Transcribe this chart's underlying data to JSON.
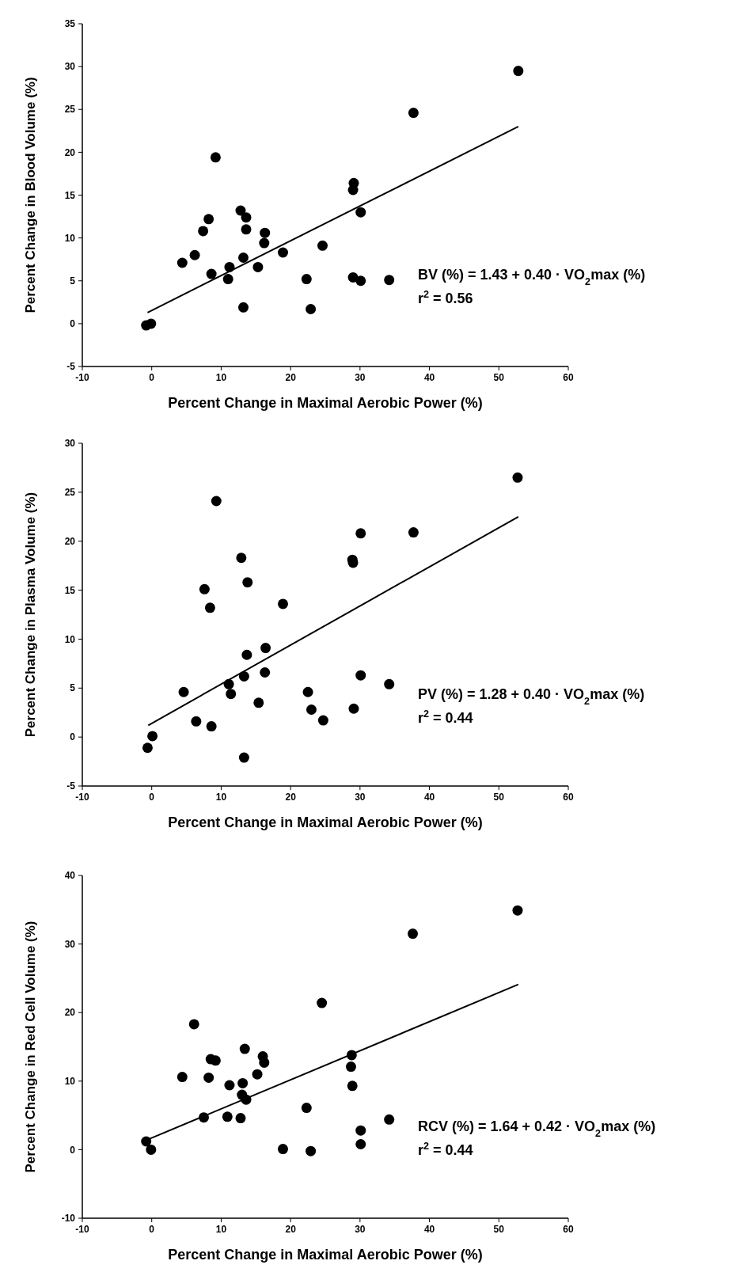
{
  "chart_data": [
    {
      "type": "scatter",
      "xlabel": "Percent Change in Maximal Aerobic Power (%)",
      "ylabel": "Percent Change in Blood Volume (%)",
      "xlim": [
        -10,
        60
      ],
      "xticks": [
        -10,
        0,
        10,
        20,
        30,
        40,
        50,
        60
      ],
      "ylim": [
        -5,
        35
      ],
      "yticks": [
        -5,
        0,
        5,
        10,
        15,
        20,
        25,
        30,
        35
      ],
      "annotations": [
        "BV (%) = 1.43 + 0.40 · VO$_{2}$max (%)",
        "r$^{2}$ = 0.56"
      ],
      "series": [
        {
          "marker": "circle",
          "color": "#000000",
          "x": [
            -0.8,
            -0.1,
            4.4,
            6.2,
            7.4,
            8.2,
            8.6,
            9.2,
            11.0,
            11.2,
            12.8,
            13.6,
            13.6,
            13.2,
            13.2,
            15.3,
            16.2,
            16.3,
            18.9,
            22.3,
            22.9,
            24.6,
            29.0,
            29.1,
            29.0,
            30.1,
            30.1,
            34.2,
            37.7,
            52.8
          ],
          "values": [
            -0.2,
            0,
            7.1,
            8.0,
            10.8,
            12.2,
            5.8,
            19.4,
            5.2,
            6.6,
            13.2,
            12.4,
            11.0,
            7.7,
            1.9,
            6.6,
            9.4,
            10.6,
            8.3,
            5.2,
            1.7,
            9.1,
            15.6,
            16.4,
            5.4,
            5.0,
            13.0,
            5.1,
            24.6,
            29.5
          ]
        },
        {
          "type": "line",
          "marker": "none",
          "color": "#000000",
          "x": [
            -0.6,
            52.8
          ],
          "values": [
            1.3,
            23.0
          ]
        }
      ]
    },
    {
      "type": "scatter",
      "xlabel": "Percent Change in Maximal Aerobic Power (%)",
      "ylabel": "Percent Change in Plasma Volume (%)",
      "xlim": [
        -10,
        60
      ],
      "xticks": [
        -10,
        0,
        10,
        20,
        30,
        40,
        50,
        60
      ],
      "ylim": [
        -5,
        30
      ],
      "yticks": [
        -5,
        0,
        5,
        10,
        15,
        20,
        25,
        30
      ],
      "annotations": [
        "PV (%) = 1.28 + 0.40 · VO$_{2}$max (%)",
        "r$^{2}$ = 0.44"
      ],
      "series": [
        {
          "marker": "circle",
          "color": "#000000",
          "x": [
            -0.6,
            0.1,
            4.6,
            6.4,
            7.6,
            8.4,
            8.6,
            9.3,
            11.1,
            11.4,
            12.9,
            13.3,
            13.3,
            13.8,
            13.7,
            15.4,
            16.3,
            16.4,
            18.9,
            22.5,
            23.0,
            24.7,
            28.9,
            29.0,
            29.1,
            30.1,
            30.1,
            34.2,
            37.7,
            52.7
          ],
          "values": [
            -1.1,
            0.1,
            4.6,
            1.6,
            15.1,
            13.2,
            1.1,
            24.1,
            5.4,
            4.4,
            18.3,
            -2.1,
            6.2,
            15.8,
            8.4,
            3.5,
            6.6,
            9.1,
            13.6,
            4.6,
            2.8,
            1.7,
            18.1,
            17.8,
            2.9,
            20.8,
            6.3,
            5.4,
            20.9,
            26.5
          ]
        },
        {
          "type": "line",
          "marker": "none",
          "color": "#000000",
          "x": [
            -0.5,
            52.8
          ],
          "values": [
            1.2,
            22.5
          ]
        }
      ]
    },
    {
      "type": "scatter",
      "xlabel": "Percent Change in Maximal Aerobic Power (%)",
      "ylabel": "Percent Change in Red Cell Volume (%)",
      "xlim": [
        -10,
        60
      ],
      "xticks": [
        -10,
        0,
        10,
        20,
        30,
        40,
        50,
        60
      ],
      "ylim": [
        -10,
        40
      ],
      "yticks": [
        -10,
        0,
        10,
        20,
        30,
        40
      ],
      "annotations": [
        "RCV (%) = 1.64 + 0.42 · VO$_{2}$max (%)",
        "r$^{2}$ = 0.44"
      ],
      "series": [
        {
          "marker": "circle",
          "color": "#000000",
          "x": [
            -0.8,
            -0.1,
            4.4,
            6.1,
            7.5,
            8.2,
            8.5,
            9.2,
            10.9,
            11.2,
            12.8,
            13.1,
            13.0,
            13.6,
            13.4,
            15.2,
            16.0,
            16.2,
            18.9,
            22.3,
            22.9,
            24.5,
            28.8,
            28.7,
            28.9,
            30.1,
            30.1,
            34.2,
            37.6,
            52.7
          ],
          "values": [
            1.2,
            0,
            10.6,
            18.3,
            4.7,
            10.5,
            13.2,
            13.0,
            4.8,
            9.4,
            4.6,
            9.7,
            8.0,
            7.3,
            14.7,
            11.0,
            13.6,
            12.7,
            0.1,
            6.1,
            -0.2,
            21.4,
            13.8,
            12.1,
            9.3,
            2.8,
            0.8,
            4.4,
            31.5,
            34.9
          ]
        },
        {
          "type": "line",
          "marker": "none",
          "color": "#000000",
          "x": [
            -0.5,
            52.8
          ],
          "values": [
            1.5,
            24.1
          ]
        }
      ]
    }
  ]
}
